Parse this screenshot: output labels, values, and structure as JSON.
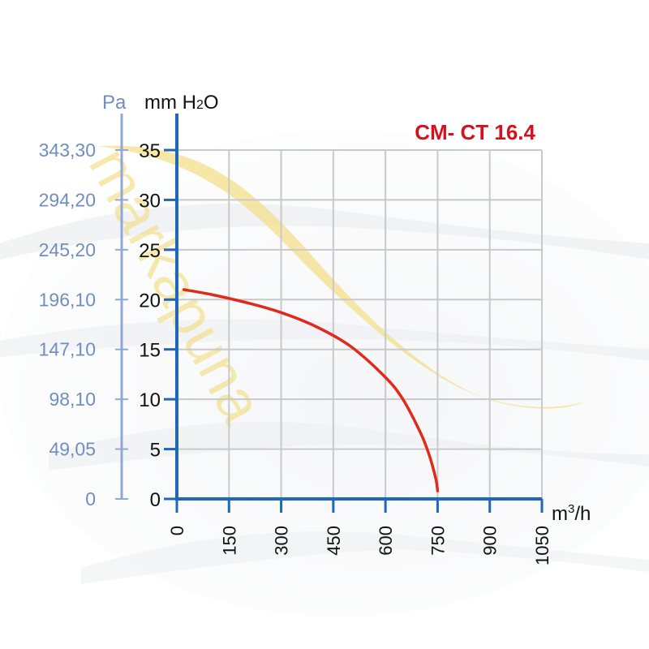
{
  "chart_data": {
    "type": "line",
    "title": "CM- CT 16.4",
    "xlabel": "m³/h",
    "ylabel": "mm H2O",
    "ylabel_secondary": "Pa",
    "x_ticks": [
      0,
      150,
      300,
      450,
      600,
      750,
      900,
      1050
    ],
    "y_ticks": [
      0,
      5,
      10,
      15,
      20,
      25,
      30,
      35
    ],
    "pa_ticks": [
      "0",
      "49,05",
      "98,10",
      "147,10",
      "196,10",
      "245,20",
      "294,20",
      "343,30"
    ],
    "xlim": [
      0,
      1050
    ],
    "ylim": [
      0,
      35
    ],
    "grid": true,
    "series": [
      {
        "color": "#e02a1c",
        "x": [
          20,
          100,
          200,
          300,
          400,
          500,
          600,
          650,
          700,
          725,
          745,
          750
        ],
        "y": [
          21,
          20.5,
          19.7,
          18.7,
          17.3,
          15.3,
          12.2,
          10,
          6.7,
          4.5,
          2,
          0.8
        ]
      }
    ],
    "watermark": "markapuna",
    "colors": {
      "axis": "#1f67b8",
      "grid": "#c9c9c9",
      "pa_axis": "#8fa8d6",
      "curve": "#e02a1c",
      "title": "#d4121e",
      "watermark": "#f3dc7a"
    }
  }
}
